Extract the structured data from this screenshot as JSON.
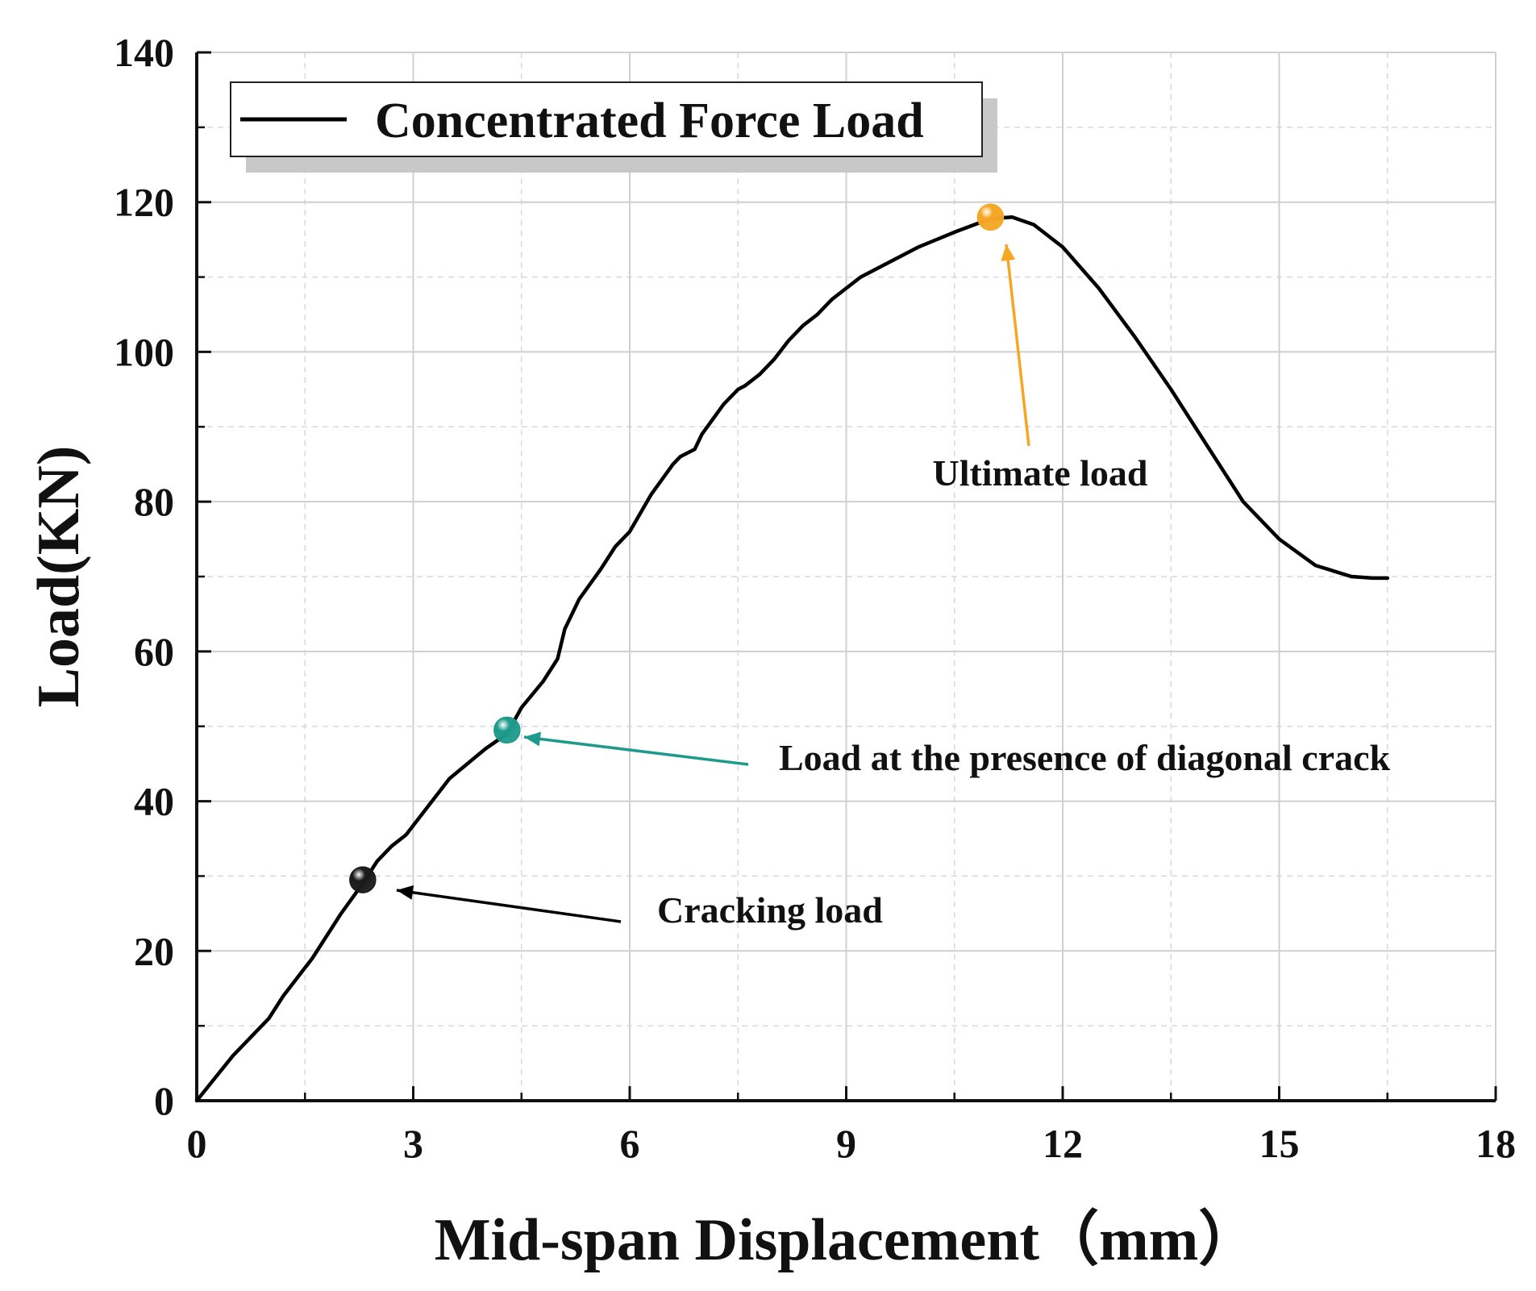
{
  "chart_data": {
    "type": "line",
    "title": "",
    "xlabel": "Mid-span Displacement（mm）",
    "ylabel": "Load(KN)",
    "xlim": [
      0,
      18
    ],
    "ylim": [
      0,
      140
    ],
    "xticks": [
      0,
      3,
      6,
      9,
      12,
      15,
      18
    ],
    "yticks": [
      0,
      20,
      40,
      60,
      80,
      100,
      120,
      140
    ],
    "grid": true,
    "legend": {
      "position": "top-left",
      "entries": [
        "Concentrated Force Load"
      ]
    },
    "series": [
      {
        "name": "Concentrated Force Load",
        "color": "#000000",
        "x": [
          0,
          0.5,
          1.0,
          1.2,
          1.6,
          2.0,
          2.3,
          2.5,
          2.7,
          2.9,
          3.1,
          3.5,
          4.0,
          4.3,
          4.5,
          4.8,
          5.0,
          5.1,
          5.3,
          5.6,
          5.8,
          6.0,
          6.3,
          6.6,
          6.7,
          6.9,
          7.0,
          7.3,
          7.5,
          7.6,
          7.8,
          8.0,
          8.2,
          8.4,
          8.6,
          8.8,
          9.0,
          9.2,
          9.5,
          10.0,
          10.5,
          11.0,
          11.3,
          11.6,
          12.0,
          12.5,
          13.0,
          13.5,
          14.0,
          14.5,
          15.0,
          15.5,
          16.0,
          16.3,
          16.5
        ],
        "values": [
          0,
          6,
          11,
          14,
          19,
          25,
          29,
          32,
          34,
          35.5,
          38,
          43,
          47,
          49,
          52.5,
          56,
          59,
          63,
          67,
          71,
          74,
          76,
          81,
          85,
          86,
          87,
          89,
          93,
          95,
          95.5,
          97,
          99,
          101.5,
          103.5,
          105,
          107,
          108.5,
          110,
          111.5,
          114,
          116,
          117.8,
          118,
          117,
          114,
          108.5,
          102,
          95,
          87.5,
          80,
          75,
          71.5,
          70,
          69.8,
          69.8
        ]
      }
    ],
    "annotations": [
      {
        "label": "Cracking load",
        "point": [
          2.3,
          29.5
        ],
        "marker_color": "#1a1a1a",
        "arrow_color": "#000000"
      },
      {
        "label": "Load at the presence of diagonal crack",
        "point": [
          4.3,
          49.5
        ],
        "marker_color": "#1e9a8c",
        "arrow_color": "#1e9a8c"
      },
      {
        "label": "Ultimate load",
        "point": [
          11.0,
          118.0
        ],
        "marker_color": "#f5a623",
        "arrow_color": "#f5a623"
      }
    ]
  }
}
